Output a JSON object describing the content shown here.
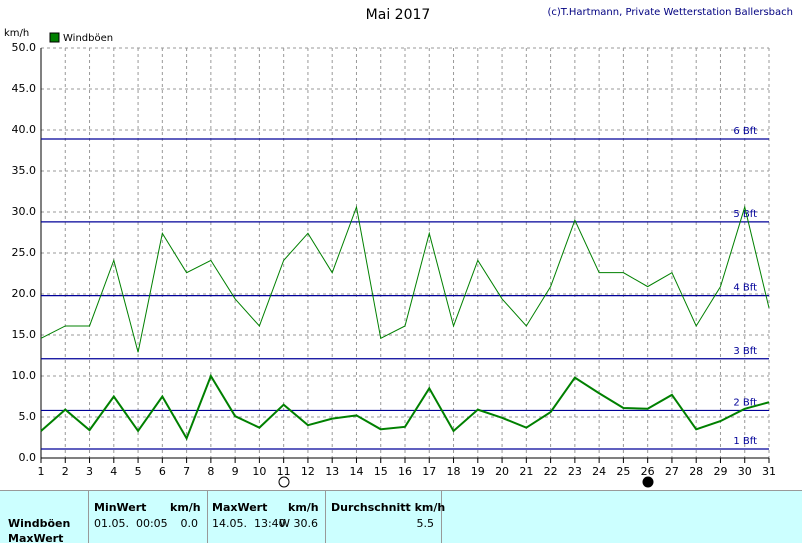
{
  "chart_data": {
    "type": "line",
    "title": "Mai 2017",
    "credit": "(c)T.Hartmann, Private Wetterstation Ballersbach",
    "y_label": "km/h",
    "x": [
      1,
      2,
      3,
      4,
      5,
      6,
      7,
      8,
      9,
      10,
      11,
      12,
      13,
      14,
      15,
      16,
      17,
      18,
      19,
      20,
      21,
      22,
      23,
      24,
      25,
      26,
      27,
      28,
      29,
      30,
      31
    ],
    "xlim": [
      1,
      31
    ],
    "xticks": [
      1,
      2,
      3,
      4,
      5,
      6,
      7,
      8,
      9,
      10,
      11,
      12,
      13,
      14,
      15,
      16,
      17,
      18,
      19,
      20,
      21,
      22,
      23,
      24,
      25,
      26,
      27,
      28,
      29,
      30,
      31
    ],
    "ylim": [
      0,
      50
    ],
    "yticks": [
      {
        "value": 0,
        "label": "0.0"
      },
      {
        "value": 5,
        "label": "5.0"
      },
      {
        "value": 10,
        "label": "10.0"
      },
      {
        "value": 15,
        "label": "15.0"
      },
      {
        "value": 20,
        "label": "20.0"
      },
      {
        "value": 25,
        "label": "25.0"
      },
      {
        "value": 30,
        "label": "30.0"
      },
      {
        "value": 35,
        "label": "35.0"
      },
      {
        "value": 40,
        "label": "40.0"
      },
      {
        "value": 45,
        "label": "45.0"
      },
      {
        "value": 50,
        "label": "50.0"
      }
    ],
    "grid": true,
    "legend": "top-left",
    "series": [
      {
        "name": "Windböen",
        "color": "#008000",
        "values": [
          14.6,
          16.1,
          16.1,
          24.1,
          12.9,
          27.4,
          22.6,
          24.1,
          19.4,
          16.1,
          24.1,
          27.4,
          22.6,
          30.6,
          14.6,
          16.1,
          27.4,
          16.1,
          24.1,
          19.4,
          16.1,
          20.9,
          29.0,
          22.6,
          22.6,
          20.9,
          22.6,
          16.1,
          20.9,
          30.6,
          18.3
        ]
      },
      {
        "color": "#008000",
        "values": [
          3.3,
          5.9,
          3.4,
          7.5,
          3.3,
          7.5,
          2.4,
          10.0,
          5.1,
          3.7,
          6.5,
          4.0,
          4.8,
          5.2,
          3.5,
          3.8,
          8.5,
          3.3,
          5.9,
          4.9,
          3.7,
          5.6,
          9.8,
          7.9,
          6.1,
          6.0,
          7.7,
          3.5,
          4.5,
          6.0,
          6.8
        ]
      }
    ],
    "bft_lines": [
      {
        "value": 1.1,
        "label": "1 Bft"
      },
      {
        "value": 5.8,
        "label": "2 Bft"
      },
      {
        "value": 12.1,
        "label": "3 Bft"
      },
      {
        "value": 19.8,
        "label": "4 Bft"
      },
      {
        "value": 28.8,
        "label": "5 Bft"
      },
      {
        "value": 38.9,
        "label": "6 Bft"
      }
    ],
    "bft_color": "#000099"
  },
  "table": {
    "headers": [
      "MinWert",
      "km/h",
      "MaxWert",
      "km/h",
      "Durchschnitt km/h"
    ],
    "row_labels": [
      "Windböen",
      "MaxWert"
    ],
    "rows": [
      [
        "01.05.  00:05",
        "0.0",
        "14.05.  13:40",
        "W 30.6",
        "5.5"
      ]
    ]
  }
}
